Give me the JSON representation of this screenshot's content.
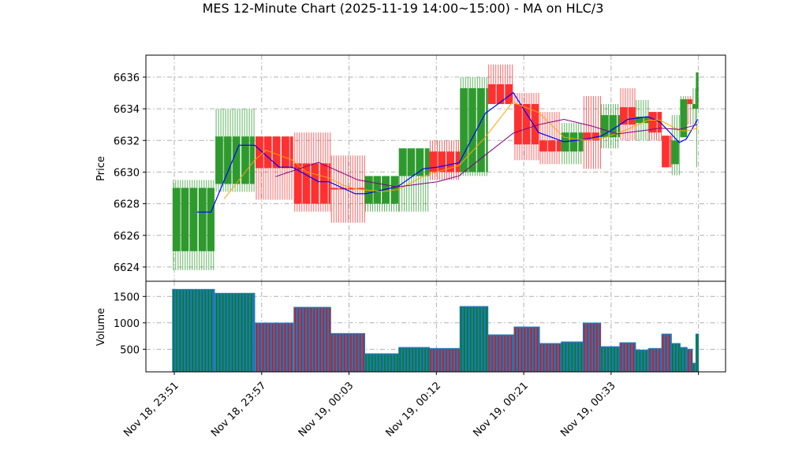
{
  "chart_data": {
    "type": "candlestick",
    "title": "MES 12-Minute Chart (2025-11-19 14:00~15:00) - MA on HLC/3",
    "price_panel": {
      "ylabel": "Price",
      "ylim": [
        6623.1,
        6637.39
      ],
      "yticks": [
        6624,
        6626,
        6628,
        6630,
        6632,
        6634,
        6636
      ],
      "grid": true
    },
    "volume_panel": {
      "ylabel": "Volume",
      "ylim": [
        72,
        1788
      ],
      "yticks": [
        500,
        1000,
        1500
      ],
      "grid": true
    },
    "x_axis": {
      "unit": "tick index",
      "xlim": [
        -0.325,
        6.31
      ],
      "ticks": [
        0,
        1,
        2,
        3,
        4,
        5,
        6
      ],
      "tick_labels": [
        "Nov 18, 23:51",
        "Nov 18, 23:57",
        "Nov 19, 00:03",
        "Nov 19, 00:12",
        "Nov 19, 00:21",
        "Nov 19, 00:33",
        ""
      ]
    },
    "colors": {
      "up": "#2e9a2e",
      "down": "#ff3030",
      "volume": "#1f77b4",
      "ma_fast": "#0000ff",
      "ma_mid": "#ffa500",
      "ma_slow": "#800080",
      "grid": "#b0b0b0"
    },
    "bars": [
      {
        "x0": -0.02,
        "x1": 0.46,
        "o": 6625.0,
        "h": 6629.5,
        "l": 6623.8,
        "c": 6629.0,
        "v": 1634
      },
      {
        "x0": 0.47,
        "x1": 0.92,
        "o": 6629.25,
        "h": 6634.0,
        "l": 6628.75,
        "c": 6632.25,
        "v": 1560
      },
      {
        "x0": 0.93,
        "x1": 1.36,
        "o": 6632.25,
        "h": 6632.25,
        "l": 6628.25,
        "c": 6630.25,
        "v": 997
      },
      {
        "x0": 1.37,
        "x1": 1.79,
        "o": 6630.55,
        "h": 6632.5,
        "l": 6627.5,
        "c": 6628.0,
        "v": 1295
      },
      {
        "x0": 1.79,
        "x1": 2.18,
        "o": 6629.0,
        "h": 6631.05,
        "l": 6626.8,
        "c": 6628.9,
        "v": 798
      },
      {
        "x0": 2.18,
        "x1": 2.57,
        "o": 6628.0,
        "h": 6629.75,
        "l": 6627.5,
        "c": 6629.75,
        "v": 415
      },
      {
        "x0": 2.57,
        "x1": 2.92,
        "o": 6629.75,
        "h": 6631.5,
        "l": 6627.5,
        "c": 6631.5,
        "v": 534
      },
      {
        "x0": 2.92,
        "x1": 3.27,
        "o": 6631.3,
        "h": 6632.0,
        "l": 6629.5,
        "c": 6630.0,
        "v": 515
      },
      {
        "x0": 3.27,
        "x1": 3.59,
        "o": 6630.0,
        "h": 6636.0,
        "l": 6629.75,
        "c": 6635.3,
        "v": 1310
      },
      {
        "x0": 3.59,
        "x1": 3.89,
        "o": 6635.55,
        "h": 6636.8,
        "l": 6634.3,
        "c": 6634.3,
        "v": 773
      },
      {
        "x0": 3.89,
        "x1": 4.18,
        "o": 6634.3,
        "h": 6635.0,
        "l": 6630.75,
        "c": 6631.75,
        "v": 922
      },
      {
        "x0": 4.18,
        "x1": 4.43,
        "o": 6632.0,
        "h": 6633.8,
        "l": 6630.5,
        "c": 6631.3,
        "v": 609
      },
      {
        "x0": 4.43,
        "x1": 4.68,
        "o": 6631.3,
        "h": 6633.1,
        "l": 6630.5,
        "c": 6632.5,
        "v": 639
      },
      {
        "x0": 4.68,
        "x1": 4.88,
        "o": 6632.5,
        "h": 6634.8,
        "l": 6630.2,
        "c": 6632.0,
        "v": 997
      },
      {
        "x0": 4.88,
        "x1": 5.1,
        "o": 6632.2,
        "h": 6634.3,
        "l": 6631.5,
        "c": 6633.6,
        "v": 549
      },
      {
        "x0": 5.1,
        "x1": 5.28,
        "o": 6634.1,
        "h": 6635.3,
        "l": 6632.0,
        "c": 6633.0,
        "v": 624
      },
      {
        "x0": 5.28,
        "x1": 5.43,
        "o": 6633.1,
        "h": 6634.55,
        "l": 6632.0,
        "c": 6633.5,
        "v": 485
      },
      {
        "x0": 5.43,
        "x1": 5.58,
        "o": 6633.8,
        "h": 6633.8,
        "l": 6632.0,
        "c": 6632.5,
        "v": 515
      },
      {
        "x0": 5.58,
        "x1": 5.69,
        "o": 6632.3,
        "h": 6632.3,
        "l": 6630.3,
        "c": 6630.3,
        "v": 788
      },
      {
        "x0": 5.69,
        "x1": 5.79,
        "o": 6630.5,
        "h": 6633.6,
        "l": 6629.8,
        "c": 6632.0,
        "v": 609
      },
      {
        "x0": 5.79,
        "x1": 5.87,
        "o": 6632.2,
        "h": 6634.8,
        "l": 6632.2,
        "c": 6634.6,
        "v": 534
      },
      {
        "x0": 5.87,
        "x1": 5.93,
        "o": 6634.6,
        "h": 6634.8,
        "l": 6633.0,
        "c": 6634.3,
        "v": 500
      },
      {
        "x0": 5.93,
        "x1": 5.97,
        "o": 6634.0,
        "h": 6635.3,
        "l": 6633.0,
        "c": 6634.3,
        "v": 236
      },
      {
        "x0": 5.97,
        "x1": 6.0,
        "o": 6634.0,
        "h": 6636.3,
        "l": 6630.3,
        "c": 6636.3,
        "v": 788
      }
    ],
    "ma_series": [
      {
        "name": "ma_fast",
        "points": [
          [
            0.26,
            6627.47
          ],
          [
            0.42,
            6627.47
          ],
          [
            0.74,
            6631.7
          ],
          [
            0.92,
            6631.7
          ],
          [
            1.2,
            6630.31
          ],
          [
            1.35,
            6630.31
          ],
          [
            1.65,
            6629.39
          ],
          [
            1.77,
            6629.39
          ],
          [
            2.07,
            6628.63
          ],
          [
            2.19,
            6628.63
          ],
          [
            2.56,
            6629.09
          ],
          [
            2.85,
            6630.21
          ],
          [
            3.01,
            6630.31
          ],
          [
            3.26,
            6630.59
          ],
          [
            3.56,
            6633.71
          ],
          [
            3.88,
            6635.02
          ],
          [
            4.17,
            6632.5
          ],
          [
            4.46,
            6631.92
          ],
          [
            4.68,
            6632.05
          ],
          [
            4.89,
            6632.28
          ],
          [
            5.07,
            6632.88
          ],
          [
            5.19,
            6633.33
          ],
          [
            5.42,
            6633.5
          ],
          [
            5.56,
            6633.16
          ],
          [
            5.78,
            6631.87
          ],
          [
            5.86,
            6632.08
          ],
          [
            5.99,
            6633.33
          ]
        ]
      },
      {
        "name": "ma_mid",
        "points": [
          [
            0.57,
            6628.3
          ],
          [
            0.92,
            6630.76
          ],
          [
            1.05,
            6631.38
          ],
          [
            1.35,
            6630.76
          ],
          [
            1.51,
            6630.01
          ],
          [
            1.77,
            6629.64
          ],
          [
            1.93,
            6629.18
          ],
          [
            2.08,
            6628.93
          ],
          [
            2.38,
            6628.76
          ],
          [
            2.56,
            6628.89
          ],
          [
            2.85,
            6629.73
          ],
          [
            3.01,
            6630.01
          ],
          [
            3.26,
            6630.42
          ],
          [
            3.56,
            6632.2
          ],
          [
            3.87,
            6634.41
          ],
          [
            4.17,
            6633.77
          ],
          [
            4.46,
            6632.2
          ],
          [
            4.68,
            6632.03
          ],
          [
            4.89,
            6632.12
          ],
          [
            5.07,
            6632.45
          ],
          [
            5.19,
            6632.7
          ],
          [
            5.42,
            6633.28
          ],
          [
            5.56,
            6633.28
          ],
          [
            5.78,
            6632.63
          ],
          [
            5.86,
            6632.6
          ],
          [
            5.99,
            6632.78
          ]
        ]
      },
      {
        "name": "ma_slow",
        "points": [
          [
            1.16,
            6629.71
          ],
          [
            1.65,
            6630.62
          ],
          [
            2.1,
            6629.51
          ],
          [
            2.55,
            6629.06
          ],
          [
            3.01,
            6629.39
          ],
          [
            3.26,
            6629.76
          ],
          [
            3.56,
            6631.08
          ],
          [
            3.88,
            6632.46
          ],
          [
            4.17,
            6633.0
          ],
          [
            4.46,
            6633.33
          ],
          [
            4.78,
            6632.91
          ],
          [
            5.07,
            6632.41
          ],
          [
            5.42,
            6632.66
          ],
          [
            5.56,
            6632.78
          ],
          [
            5.78,
            6632.7
          ],
          [
            5.99,
            6633.0
          ]
        ]
      }
    ]
  }
}
